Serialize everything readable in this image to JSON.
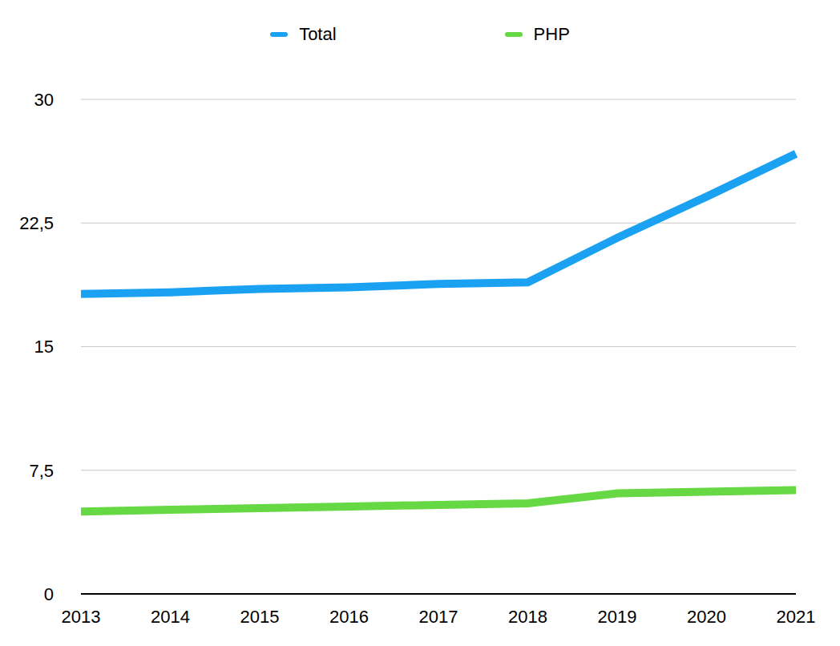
{
  "chart_data": {
    "type": "line",
    "categories": [
      "2013",
      "2014",
      "2015",
      "2016",
      "2017",
      "2018",
      "2019",
      "2020",
      "2021"
    ],
    "series": [
      {
        "name": "Total",
        "color": "#1ba1f2",
        "values": [
          18.2,
          18.3,
          18.5,
          18.6,
          18.8,
          18.9,
          21.6,
          24.1,
          26.7
        ]
      },
      {
        "name": "PHP",
        "color": "#65d843",
        "values": [
          5.0,
          5.1,
          5.2,
          5.3,
          5.4,
          5.5,
          6.1,
          6.2,
          6.3
        ]
      }
    ],
    "ylim": [
      0,
      30
    ],
    "yticks": [
      0,
      {
        "value": 7.5,
        "label": "7,5"
      },
      15,
      {
        "value": 22.5,
        "label": "22,5"
      },
      30
    ],
    "grid": true,
    "legend": "top"
  }
}
